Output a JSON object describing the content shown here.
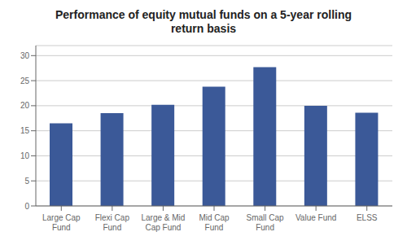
{
  "chart_data": {
    "type": "bar",
    "title": "Performance of equity mutual funds on a 5-year rolling\nreturn basis",
    "categories": [
      "Large Cap\nFund",
      "Flexi Cap\nFund",
      "Large & Mid\nCap Fund",
      "Mid Cap\nFund",
      "Small Cap\nFund",
      "Value Fund",
      "ELSS"
    ],
    "values": [
      16.5,
      18.5,
      20.2,
      23.8,
      27.7,
      20.0,
      18.6
    ],
    "color": "#3B5998",
    "ylim": [
      0,
      32
    ],
    "yticks": [
      0,
      5,
      10,
      15,
      20,
      25,
      30
    ],
    "grid": true
  }
}
